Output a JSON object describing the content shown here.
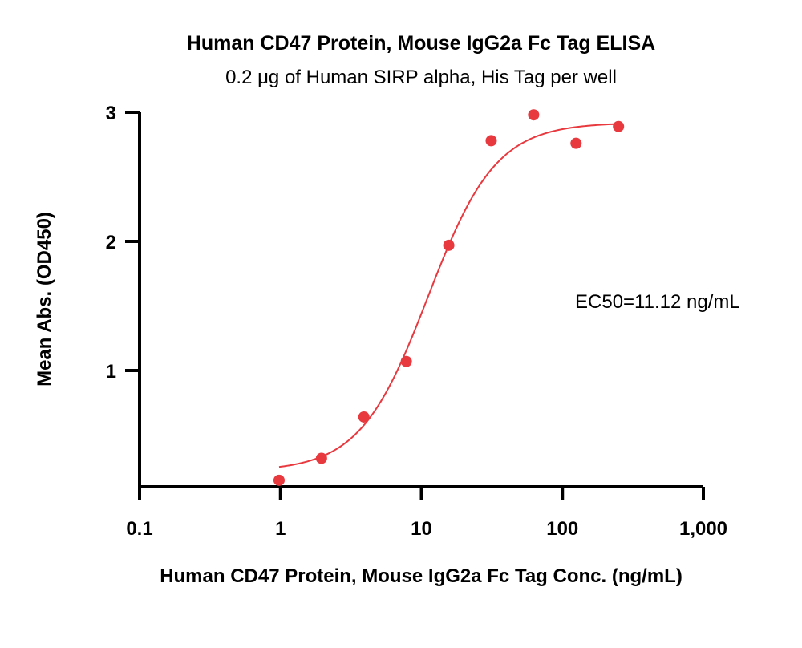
{
  "chart_data": {
    "type": "scatter",
    "title": "Human CD47 Protein, Mouse IgG2a Fc Tag ELISA",
    "subtitle": "0.2 μg of Human SIRP alpha, His Tag per well",
    "xlabel": "Human CD47 Protein, Mouse IgG2a Fc Tag Conc. (ng/mL)",
    "ylabel": "Mean Abs. (OD450)",
    "x_scale": "log",
    "xlim": [
      0.1,
      1000
    ],
    "ylim": [
      0.1,
      3
    ],
    "x_ticks": [
      0.1,
      1,
      10,
      100,
      1000
    ],
    "x_tick_labels": [
      "0.1",
      "1",
      "10",
      "100",
      "1,000"
    ],
    "y_ticks": [
      1,
      2,
      3
    ],
    "y_tick_labels": [
      "1",
      "2",
      "3"
    ],
    "grid": false,
    "point_color": "#e8393f",
    "curve_color": "#e8393f",
    "x": [
      0.977,
      1.953,
      3.906,
      7.813,
      15.625,
      31.25,
      62.5,
      125,
      250
    ],
    "y": [
      0.15,
      0.32,
      0.64,
      1.07,
      1.97,
      2.78,
      2.98,
      2.76,
      2.89
    ],
    "fit": {
      "model": "4PL",
      "bottom": 0.22,
      "top": 2.92,
      "ec50": 11.12,
      "hill": 1.8,
      "x_range": [
        0.977,
        250
      ]
    },
    "annotation": "EC50=11.12 ng/mL"
  }
}
